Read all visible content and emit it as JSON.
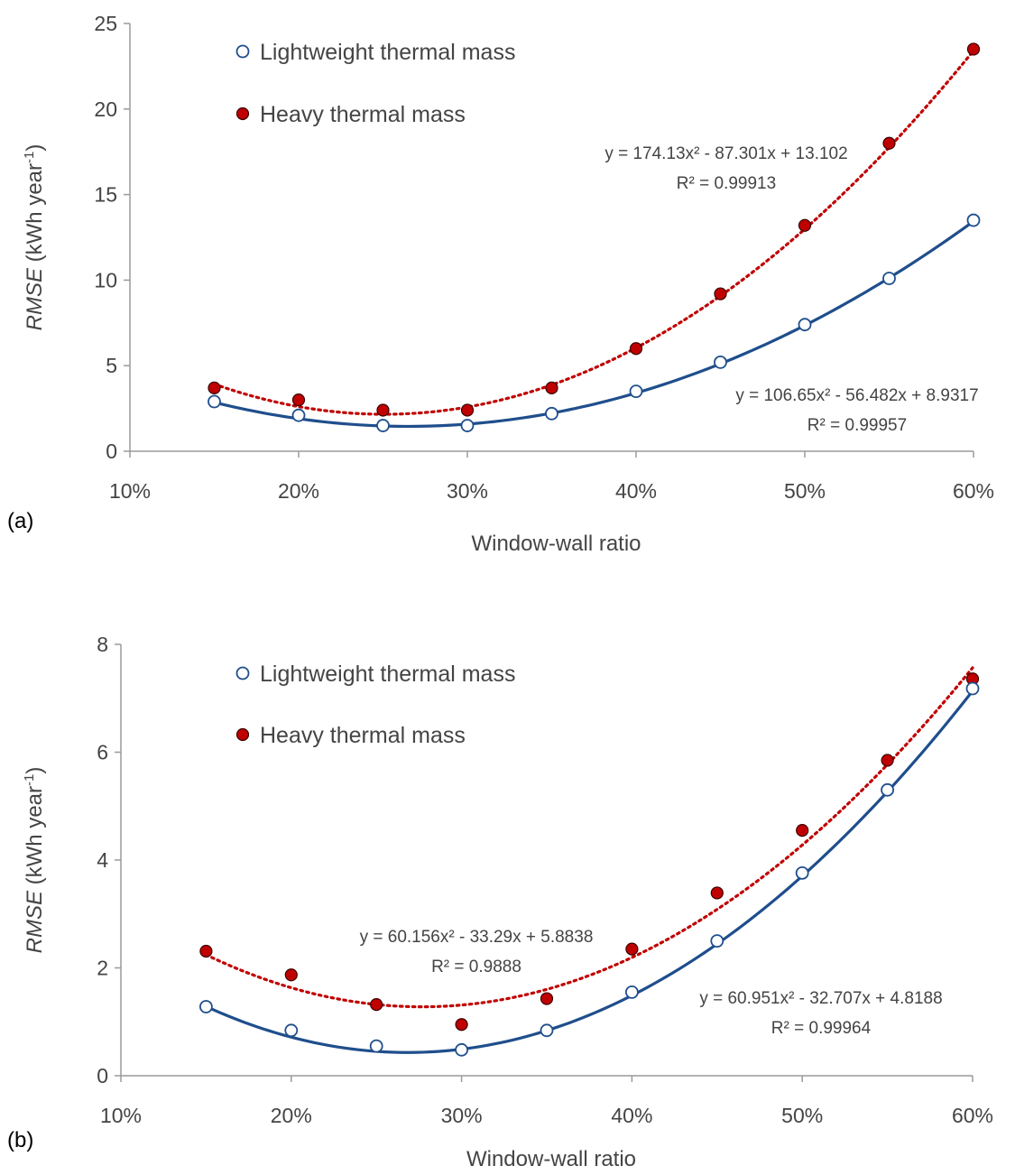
{
  "chart_data": [
    {
      "type": "scatter",
      "panel_label": "(a)",
      "xlabel": "Window-wall ratio",
      "ylabel": {
        "italic": "RMSE",
        "unit": " (kWh year",
        "superscript": "-1",
        "close": ")"
      },
      "xlim": [
        0.1,
        0.6
      ],
      "ylim": [
        0,
        25
      ],
      "x_ticks": [
        0.1,
        0.2,
        0.3,
        0.4,
        0.5,
        0.6
      ],
      "x_tick_labels": [
        "10%",
        "20%",
        "30%",
        "40%",
        "50%",
        "60%"
      ],
      "y_ticks": [
        0,
        5,
        10,
        15,
        20,
        25
      ],
      "y_tick_labels": [
        "0",
        "5",
        "10",
        "15",
        "20",
        "25"
      ],
      "grid": false,
      "legend_position": "top-left",
      "series": [
        {
          "name": "Lightweight thermal mass",
          "color": "#1f4e8c",
          "marker": "open-circle",
          "x": [
            0.15,
            0.2,
            0.25,
            0.3,
            0.35,
            0.4,
            0.45,
            0.5,
            0.55,
            0.6
          ],
          "y": [
            2.9,
            2.1,
            1.5,
            1.5,
            2.2,
            3.5,
            5.2,
            7.4,
            10.1,
            13.5
          ],
          "trendline": {
            "style": "solid",
            "coefficients": [
              106.65,
              -56.482,
              8.9317
            ],
            "equation": "y = 106.65x² - 56.482x + 8.9317",
            "r2": "R² = 0.99957"
          }
        },
        {
          "name": "Heavy thermal mass",
          "color": "#c00000",
          "marker": "filled-circle",
          "x": [
            0.15,
            0.2,
            0.25,
            0.3,
            0.35,
            0.4,
            0.45,
            0.5,
            0.55,
            0.6
          ],
          "y": [
            3.7,
            3.0,
            2.4,
            2.4,
            3.7,
            6.0,
            9.2,
            13.2,
            18.0,
            23.5
          ],
          "trendline": {
            "style": "dotted",
            "coefficients": [
              174.13,
              -87.301,
              13.102
            ],
            "equation": "y = 174.13x² - 87.301x + 13.102",
            "r2": "R² = 0.99913"
          }
        }
      ]
    },
    {
      "type": "scatter",
      "panel_label": "(b)",
      "xlabel": "Window-wall ratio",
      "ylabel": {
        "italic": "RMSE",
        "unit": " (kWh year",
        "superscript": "-1",
        "close": ")"
      },
      "xlim": [
        0.1,
        0.6
      ],
      "ylim": [
        0,
        8
      ],
      "x_ticks": [
        0.1,
        0.2,
        0.3,
        0.4,
        0.5,
        0.6
      ],
      "x_tick_labels": [
        "10%",
        "20%",
        "30%",
        "40%",
        "50%",
        "60%"
      ],
      "y_ticks": [
        0,
        2,
        4,
        6,
        8
      ],
      "y_tick_labels": [
        "0",
        "2",
        "4",
        "6",
        "8"
      ],
      "grid": false,
      "legend_position": "top-left",
      "series": [
        {
          "name": "Lightweight thermal mass",
          "color": "#1f4e8c",
          "marker": "open-circle",
          "x": [
            0.15,
            0.2,
            0.25,
            0.3,
            0.35,
            0.4,
            0.45,
            0.5,
            0.55,
            0.6
          ],
          "y": [
            1.28,
            0.84,
            0.55,
            0.48,
            0.84,
            1.55,
            2.5,
            3.76,
            5.3,
            7.18
          ],
          "trendline": {
            "style": "solid",
            "coefficients": [
              60.951,
              -32.707,
              4.8188
            ],
            "equation": "y = 60.951x² - 32.707x + 4.8188",
            "r2": "R² = 0.99964"
          }
        },
        {
          "name": "Heavy thermal mass",
          "color": "#c00000",
          "marker": "filled-circle",
          "x": [
            0.15,
            0.2,
            0.25,
            0.3,
            0.35,
            0.4,
            0.45,
            0.5,
            0.55,
            0.6
          ],
          "y": [
            2.31,
            1.87,
            1.32,
            0.95,
            1.43,
            2.35,
            3.39,
            4.55,
            5.85,
            7.36
          ],
          "trendline": {
            "style": "dotted",
            "coefficients": [
              60.156,
              -33.29,
              5.8838
            ],
            "equation": "y = 60.156x² - 33.29x + 5.8838",
            "r2": "R² = 0.9888"
          }
        }
      ]
    }
  ]
}
